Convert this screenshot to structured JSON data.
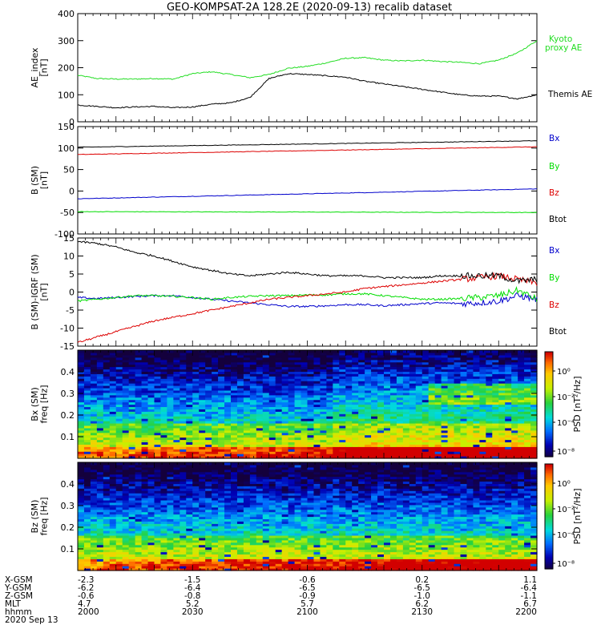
{
  "title": "GEO-KOMPSAT-2A 128.2E (2020-09-13) recalib dataset",
  "colors": {
    "black": "#000000",
    "red": "#dd0000",
    "green": "#00dd00",
    "blue": "#0000cc",
    "kyoto": "#22dd22"
  },
  "chart_data": [
    {
      "type": "line",
      "ylabel": "AE_index [nT]",
      "ylim": [
        0,
        400
      ],
      "yticks": [
        0,
        100,
        200,
        300,
        400
      ],
      "x": [
        0,
        5,
        10,
        15,
        20,
        25,
        30,
        35,
        40,
        45,
        50,
        55,
        60,
        65,
        70,
        75,
        80,
        85,
        90,
        95,
        100,
        105,
        110,
        115,
        120
      ],
      "series": [
        {
          "name": "Kyoto proxy AE",
          "color": "#22dd22",
          "label_lines": [
            "Kyoto",
            "proxy AE"
          ],
          "values": [
            172,
            160,
            158,
            158,
            160,
            158,
            178,
            185,
            175,
            163,
            175,
            198,
            205,
            218,
            235,
            237,
            228,
            225,
            228,
            223,
            220,
            215,
            228,
            255,
            300
          ]
        },
        {
          "name": "Themis AE",
          "color": "#000000",
          "label_lines": [
            "Themis AE"
          ],
          "values": [
            62,
            57,
            52,
            55,
            57,
            52,
            55,
            65,
            70,
            90,
            160,
            178,
            175,
            170,
            165,
            150,
            140,
            130,
            120,
            110,
            100,
            95,
            95,
            85,
            100
          ]
        }
      ]
    },
    {
      "type": "line",
      "ylabel": "B (SM) [nT]",
      "ylim": [
        -100,
        150
      ],
      "yticks": [
        -100,
        -50,
        0,
        50,
        100,
        150
      ],
      "x": [
        0,
        120
      ],
      "series": [
        {
          "name": "Bx",
          "color": "#0000cc",
          "values": [
            -18,
            5
          ]
        },
        {
          "name": "By",
          "color": "#00dd00",
          "values": [
            -48,
            -50
          ]
        },
        {
          "name": "Bz",
          "color": "#dd0000",
          "values": [
            85,
            103
          ]
        },
        {
          "name": "Btot",
          "color": "#000000",
          "values": [
            102,
            117
          ]
        }
      ]
    },
    {
      "type": "line",
      "ylabel": "B (SM)-IGRF (SM) [nT]",
      "ylim": [
        -15,
        15
      ],
      "yticks": [
        -15,
        -10,
        -5,
        0,
        5,
        10,
        15
      ],
      "x": [
        0,
        5,
        10,
        15,
        20,
        25,
        30,
        35,
        40,
        45,
        50,
        55,
        60,
        65,
        70,
        75,
        80,
        85,
        90,
        95,
        100,
        105,
        110,
        115,
        120
      ],
      "series": [
        {
          "name": "Bx",
          "color": "#0000cc",
          "values": [
            -1.5,
            -1.8,
            -1.5,
            -1.2,
            -1,
            -1,
            -1.5,
            -2,
            -2.5,
            -3,
            -3.5,
            -4,
            -4,
            -3.8,
            -3.5,
            -3.5,
            -3.8,
            -3.5,
            -3.2,
            -3,
            -3.2,
            -3,
            -2.5,
            -1,
            -2
          ]
        },
        {
          "name": "By",
          "color": "#00dd00",
          "values": [
            -2.5,
            -2,
            -1.5,
            -1,
            -1,
            -1.2,
            -1.5,
            -2,
            -1.5,
            -1.2,
            -1,
            -1,
            -0.8,
            -0.8,
            -0.5,
            -0.5,
            -1,
            -1.5,
            -2,
            -2,
            -1.8,
            -1.5,
            -1,
            0.5,
            -2
          ]
        },
        {
          "name": "Bz",
          "color": "#dd0000",
          "values": [
            -14,
            -12.5,
            -11,
            -9.5,
            -8,
            -7,
            -6,
            -5,
            -4,
            -3,
            -2,
            -1.5,
            -1,
            -0.5,
            0,
            1,
            1.5,
            2,
            2.5,
            3,
            3.5,
            4,
            4.5,
            3.5,
            2.5
          ]
        },
        {
          "name": "Btot",
          "color": "#000000",
          "values": [
            14,
            13.5,
            12.5,
            11,
            10,
            8.5,
            7,
            6,
            5,
            4.5,
            5,
            5.5,
            5,
            4.5,
            4.5,
            4.5,
            4,
            4,
            4,
            4.5,
            4.5,
            4.5,
            4.5,
            3,
            3.5
          ]
        }
      ]
    },
    {
      "type": "heatmap",
      "ylabel": "Bx (SM) freq [Hz]",
      "yticks": [
        0.1,
        0.2,
        0.3,
        0.4
      ],
      "ylim": [
        0,
        0.5
      ],
      "colorbar_label": "PSD [nT²/Hz]",
      "colorbar_ticks": [
        "10⁰",
        "10⁻²",
        "10⁻⁴",
        "10⁻⁸"
      ]
    },
    {
      "type": "heatmap",
      "ylabel": "Bz (SM) freq [Hz]",
      "yticks": [
        0.1,
        0.2,
        0.3,
        0.4
      ],
      "ylim": [
        0,
        0.5
      ],
      "colorbar_label": "PSD [nT²/Hz]",
      "colorbar_ticks": [
        "10⁰",
        "10⁻²",
        "10⁻⁴",
        "10⁻⁸"
      ]
    }
  ],
  "ephemeris": {
    "row_labels": [
      "X-GSM",
      "Y-GSM",
      "Z-GSM",
      "MLT",
      "hhmm"
    ],
    "date": "2020 Sep 13",
    "columns": [
      {
        "x": 0,
        "values": [
          "-2.3",
          "-6.2",
          "-0.6",
          "4.7",
          "2000"
        ]
      },
      {
        "x": 30,
        "values": [
          "-1.5",
          "-6.4",
          "-0.8",
          "5.2",
          "2030"
        ]
      },
      {
        "x": 60,
        "values": [
          "-0.6",
          "-6.5",
          "-0.9",
          "5.7",
          "2100"
        ]
      },
      {
        "x": 90,
        "values": [
          "0.2",
          "-6.5",
          "-1.0",
          "6.2",
          "2130"
        ]
      },
      {
        "x": 120,
        "values": [
          "1.1",
          "-6.4",
          "-1.1",
          "6.7",
          "2200"
        ]
      }
    ]
  }
}
